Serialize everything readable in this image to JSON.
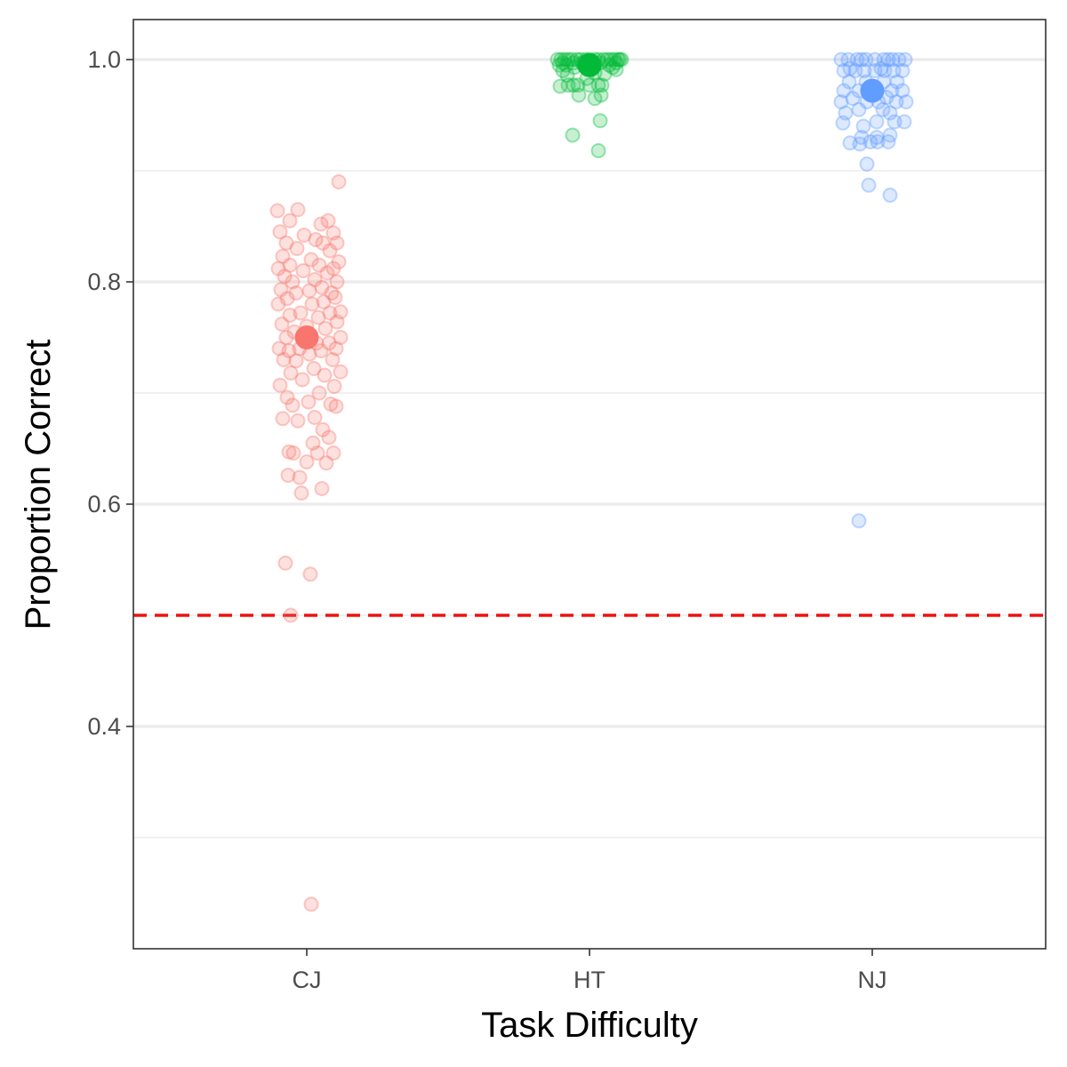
{
  "chart_data": {
    "type": "scatter",
    "xlabel": "Task Difficulty",
    "ylabel": "Proportion Correct",
    "categories": [
      "CJ",
      "HT",
      "NJ"
    ],
    "ylim": [
      0.2,
      1.036
    ],
    "yticks": [
      0.4,
      0.6,
      0.8,
      1.0
    ],
    "ytick_labels": [
      "0.4",
      "0.6",
      "0.8",
      "1.0"
    ],
    "minor_gridlines": [
      0.3,
      0.5,
      0.7,
      0.9
    ],
    "grid": true,
    "legend": "none",
    "reference_line": {
      "y": 0.5,
      "color": "#ee1111",
      "style": "dashed"
    },
    "series": [
      {
        "category": "CJ",
        "color": "#F8766D",
        "mean": 0.75,
        "points": [
          [
            0.05,
            0.24
          ],
          [
            -0.24,
            0.547
          ],
          [
            -0.18,
            0.5
          ],
          [
            0.04,
            0.537
          ],
          [
            -0.06,
            0.61
          ],
          [
            0.17,
            0.614
          ],
          [
            -0.08,
            0.624
          ],
          [
            -0.21,
            0.626
          ],
          [
            0.22,
            0.637
          ],
          [
            0.0,
            0.638
          ],
          [
            -0.15,
            0.646
          ],
          [
            0.12,
            0.646
          ],
          [
            0.3,
            0.646
          ],
          [
            -0.2,
            0.647
          ],
          [
            0.07,
            0.655
          ],
          [
            0.25,
            0.66
          ],
          [
            0.18,
            0.667
          ],
          [
            -0.27,
            0.677
          ],
          [
            -0.1,
            0.675
          ],
          [
            0.09,
            0.678
          ],
          [
            0.33,
            0.688
          ],
          [
            -0.16,
            0.689
          ],
          [
            0.02,
            0.692
          ],
          [
            0.27,
            0.69
          ],
          [
            -0.22,
            0.696
          ],
          [
            0.14,
            0.7
          ],
          [
            0.31,
            0.706
          ],
          [
            -0.3,
            0.707
          ],
          [
            -0.05,
            0.712
          ],
          [
            0.2,
            0.716
          ],
          [
            -0.18,
            0.718
          ],
          [
            0.38,
            0.719
          ],
          [
            0.08,
            0.722
          ],
          [
            -0.26,
            0.73
          ],
          [
            -0.12,
            0.729
          ],
          [
            0.29,
            0.73
          ],
          [
            0.03,
            0.735
          ],
          [
            -0.2,
            0.738
          ],
          [
            0.16,
            0.738
          ],
          [
            0.33,
            0.74
          ],
          [
            -0.31,
            0.74
          ],
          [
            -0.08,
            0.74
          ],
          [
            0.25,
            0.745
          ],
          [
            0.11,
            0.745
          ],
          [
            -0.23,
            0.75
          ],
          [
            0.38,
            0.75
          ],
          [
            -0.14,
            0.755
          ],
          [
            0.21,
            0.758
          ],
          [
            0.0,
            0.76
          ],
          [
            -0.28,
            0.762
          ],
          [
            0.34,
            0.764
          ],
          [
            0.13,
            0.768
          ],
          [
            -0.19,
            0.77
          ],
          [
            0.26,
            0.772
          ],
          [
            -0.07,
            0.772
          ],
          [
            0.38,
            0.773
          ],
          [
            -0.32,
            0.78
          ],
          [
            0.06,
            0.78
          ],
          [
            0.19,
            0.782
          ],
          [
            -0.22,
            0.785
          ],
          [
            0.32,
            0.786
          ],
          [
            -0.12,
            0.79
          ],
          [
            0.28,
            0.79
          ],
          [
            0.03,
            0.792
          ],
          [
            -0.29,
            0.793
          ],
          [
            0.17,
            0.795
          ],
          [
            -0.16,
            0.8
          ],
          [
            0.34,
            0.8
          ],
          [
            0.09,
            0.802
          ],
          [
            -0.25,
            0.805
          ],
          [
            0.23,
            0.808
          ],
          [
            -0.04,
            0.81
          ],
          [
            0.3,
            0.812
          ],
          [
            -0.32,
            0.812
          ],
          [
            0.14,
            0.815
          ],
          [
            -0.19,
            0.815
          ],
          [
            0.36,
            0.818
          ],
          [
            0.05,
            0.82
          ],
          [
            -0.27,
            0.823
          ],
          [
            0.26,
            0.828
          ],
          [
            -0.11,
            0.83
          ],
          [
            0.18,
            0.835
          ],
          [
            -0.23,
            0.835
          ],
          [
            0.34,
            0.835
          ],
          [
            0.1,
            0.838
          ],
          [
            -0.03,
            0.842
          ],
          [
            0.3,
            0.844
          ],
          [
            -0.3,
            0.845
          ],
          [
            0.16,
            0.852
          ],
          [
            -0.19,
            0.855
          ],
          [
            0.24,
            0.855
          ],
          [
            -0.33,
            0.864
          ],
          [
            -0.1,
            0.865
          ],
          [
            0.36,
            0.89
          ]
        ]
      },
      {
        "category": "HT",
        "color": "#00BA38",
        "mean": 0.995,
        "points": [
          [
            0.1,
            0.918
          ],
          [
            -0.19,
            0.932
          ],
          [
            0.12,
            0.945
          ],
          [
            -0.12,
            0.968
          ],
          [
            0.06,
            0.965
          ],
          [
            0.13,
            0.968
          ],
          [
            -0.33,
            0.976
          ],
          [
            -0.24,
            0.977
          ],
          [
            -0.13,
            0.977
          ],
          [
            0.0,
            0.977
          ],
          [
            0.1,
            0.977
          ],
          [
            0.14,
            0.977
          ],
          [
            -0.18,
            0.977
          ],
          [
            -0.03,
            0.983
          ],
          [
            -0.25,
            0.986
          ],
          [
            0.17,
            0.987
          ],
          [
            0.06,
            0.988
          ],
          [
            -0.3,
            0.99
          ],
          [
            0.3,
            0.991
          ],
          [
            0.05,
            0.994
          ],
          [
            -0.06,
            0.994
          ],
          [
            0.26,
            0.993
          ],
          [
            -0.17,
            0.993
          ],
          [
            -0.34,
            0.995
          ],
          [
            -0.28,
            1.0
          ],
          [
            -0.2,
            1.0
          ],
          [
            -0.1,
            1.0
          ],
          [
            0.0,
            1.0
          ],
          [
            0.1,
            1.0
          ],
          [
            0.2,
            1.0
          ],
          [
            0.28,
            1.0
          ],
          [
            0.34,
            1.0
          ],
          [
            -0.32,
            1.0
          ],
          [
            -0.24,
            1.0
          ],
          [
            -0.14,
            1.0
          ],
          [
            -0.04,
            1.0
          ],
          [
            0.06,
            1.0
          ],
          [
            0.16,
            1.0
          ],
          [
            0.24,
            1.0
          ],
          [
            0.32,
            1.0
          ],
          [
            -0.36,
            1.0
          ],
          [
            0.36,
            1.0
          ],
          [
            -0.26,
            0.995
          ],
          [
            0.22,
            0.995
          ],
          [
            0.12,
            0.997
          ],
          [
            -0.08,
            0.997
          ],
          [
            0.3,
            0.997
          ],
          [
            -0.3,
            0.997
          ],
          [
            0.02,
            0.997
          ],
          [
            -0.18,
            0.997
          ]
        ]
      },
      {
        "category": "NJ",
        "color": "#619CFF",
        "mean": 0.972,
        "points": [
          [
            -0.15,
            0.585
          ],
          [
            0.2,
            0.878
          ],
          [
            -0.04,
            0.887
          ],
          [
            -0.06,
            0.906
          ],
          [
            -0.14,
            0.924
          ],
          [
            -0.25,
            0.925
          ],
          [
            -0.02,
            0.926
          ],
          [
            0.18,
            0.926
          ],
          [
            0.06,
            0.926
          ],
          [
            -0.12,
            0.93
          ],
          [
            0.05,
            0.93
          ],
          [
            0.2,
            0.932
          ],
          [
            -0.1,
            0.94
          ],
          [
            -0.33,
            0.943
          ],
          [
            0.05,
            0.944
          ],
          [
            0.25,
            0.944
          ],
          [
            0.36,
            0.944
          ],
          [
            -0.3,
            0.952
          ],
          [
            0.2,
            0.952
          ],
          [
            -0.15,
            0.955
          ],
          [
            0.12,
            0.955
          ],
          [
            -0.35,
            0.962
          ],
          [
            -0.06,
            0.962
          ],
          [
            0.07,
            0.962
          ],
          [
            0.27,
            0.962
          ],
          [
            0.38,
            0.962
          ],
          [
            -0.22,
            0.965
          ],
          [
            0.16,
            0.966
          ],
          [
            -0.32,
            0.972
          ],
          [
            -0.15,
            0.972
          ],
          [
            0.05,
            0.972
          ],
          [
            0.22,
            0.972
          ],
          [
            0.34,
            0.972
          ],
          [
            -0.26,
            0.98
          ],
          [
            0.13,
            0.98
          ],
          [
            -0.07,
            0.98
          ],
          [
            0.28,
            0.98
          ],
          [
            -0.32,
            0.99
          ],
          [
            -0.19,
            0.99
          ],
          [
            -0.09,
            0.99
          ],
          [
            0.03,
            0.99
          ],
          [
            0.14,
            0.99
          ],
          [
            0.24,
            0.99
          ],
          [
            0.34,
            0.99
          ],
          [
            -0.25,
            0.992
          ],
          [
            0.1,
            0.992
          ],
          [
            -0.35,
            1.0
          ],
          [
            -0.27,
            1.0
          ],
          [
            -0.17,
            1.0
          ],
          [
            -0.07,
            1.0
          ],
          [
            0.03,
            1.0
          ],
          [
            0.13,
            1.0
          ],
          [
            0.23,
            1.0
          ],
          [
            0.3,
            1.0
          ],
          [
            0.37,
            1.0
          ],
          [
            -0.12,
            1.0
          ],
          [
            0.18,
            1.0
          ]
        ]
      }
    ]
  }
}
